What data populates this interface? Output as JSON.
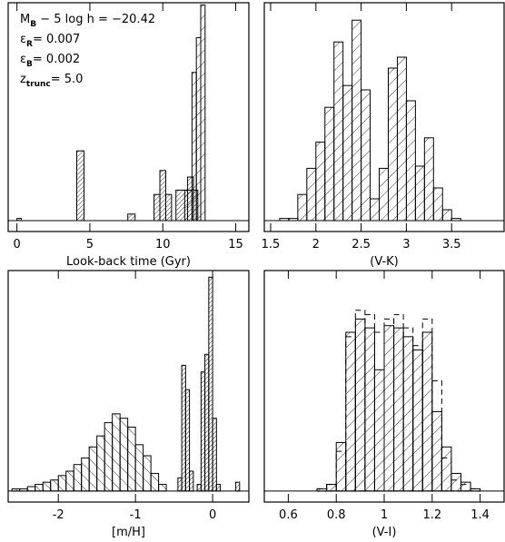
{
  "chart_data": [
    {
      "type": "histogram",
      "xlabel": "Look-back time (Gyr)",
      "xlim": [
        -0.6,
        15.9
      ],
      "ylim": [
        -5,
        100
      ],
      "xticks": [
        0,
        5,
        10,
        15
      ],
      "annotations": [
        {
          "symbol": "M",
          "sub": "B",
          "text": " − 5 log h = −20.42"
        },
        {
          "symbol": "ε",
          "sub": "R",
          "text": "= 0.007"
        },
        {
          "symbol": "ε",
          "sub": "B",
          "text": "= 0.002"
        },
        {
          "symbol": "z",
          "sub": "trunc",
          "text": "= 5.0"
        }
      ],
      "series": [
        {
          "hatch": "///",
          "color": "#000000",
          "bins": [
            0,
            0.3,
            4.1,
            4.6,
            7.6,
            8.1,
            9.4,
            9.8,
            10.2,
            10.6,
            10.9,
            11.7,
            12.1,
            12.4
          ],
          "values": [
            1,
            0,
            32,
            0,
            3,
            0,
            12,
            23,
            12,
            0,
            14,
            20,
            14
          ]
        },
        {
          "hatch": "/",
          "color": "#000000",
          "bins": [
            11.5,
            12.0,
            12.3,
            12.6,
            12.9
          ],
          "values": [
            14,
            68,
            84,
            99
          ]
        }
      ]
    },
    {
      "type": "histogram",
      "xlabel": "(V-K)",
      "xlim": [
        1.43,
        4.08
      ],
      "ylim": [
        -5,
        100
      ],
      "xticks": [
        1.5,
        2,
        2.5,
        3,
        3.5
      ],
      "series": [
        {
          "hatch": "/",
          "color": "#000000",
          "bins": [
            1.6,
            1.7,
            1.8,
            1.9,
            2.0,
            2.1,
            2.2,
            2.3,
            2.4,
            2.5,
            2.6,
            2.7,
            2.8,
            2.9,
            3.0,
            3.1,
            3.2,
            3.3,
            3.4,
            3.5,
            3.6
          ],
          "values": [
            1,
            1,
            12,
            24,
            36,
            52,
            82,
            62,
            92,
            60,
            10,
            24,
            70,
            75,
            55,
            25,
            38,
            15,
            5,
            1
          ]
        }
      ]
    },
    {
      "type": "histogram",
      "xlabel": "[m/H]",
      "xlim": [
        -2.65,
        0.47
      ],
      "ylim": [
        -5,
        100
      ],
      "xticks": [
        -2,
        -1,
        0
      ],
      "series": [
        {
          "hatch": "\\",
          "color": "#000000",
          "bins": [
            -2.6,
            -2.5,
            -2.4,
            -2.3,
            -2.2,
            -2.1,
            -2.0,
            -1.9,
            -1.8,
            -1.7,
            -1.6,
            -1.5,
            -1.4,
            -1.3,
            -1.2,
            -1.1,
            -1.0,
            -0.9,
            -0.8,
            -0.7,
            -0.6
          ],
          "values": [
            1,
            1,
            2,
            3,
            4,
            5,
            7,
            9,
            12,
            15,
            20,
            25,
            31,
            35,
            33,
            29,
            21,
            16,
            8,
            3
          ]
        },
        {
          "hatch": "///",
          "color": "#000000",
          "bins": [
            -0.45,
            -0.4,
            -0.35,
            -0.3,
            -0.25,
            -0.2,
            -0.15,
            -0.1,
            -0.05,
            0,
            0.05,
            0.1,
            0.15,
            0.2,
            0.25,
            0.3,
            0.35,
            0.4
          ],
          "values": [
            6,
            57,
            46,
            9,
            0,
            3,
            54,
            62,
            97,
            33,
            3,
            0,
            0,
            0,
            0,
            4,
            0
          ]
        }
      ]
    },
    {
      "type": "histogram",
      "xlabel": "(V-I)",
      "xlim": [
        0.5,
        1.5
      ],
      "ylim": [
        -5,
        100
      ],
      "xticks": [
        0.6,
        0.8,
        1,
        1.2,
        1.4
      ],
      "series": [
        {
          "hatch": "/",
          "color": "#000000",
          "bins": [
            0.72,
            0.76,
            0.8,
            0.84,
            0.88,
            0.92,
            0.96,
            1.0,
            1.04,
            1.08,
            1.12,
            1.16,
            1.2,
            1.24,
            1.28,
            1.32,
            1.36,
            1.4
          ],
          "values": [
            1,
            3,
            22,
            72,
            78,
            74,
            55,
            75,
            74,
            70,
            64,
            72,
            36,
            20,
            8,
            4,
            1
          ]
        },
        {
          "line_style": "dashed",
          "color": "#000000",
          "bins": [
            0.72,
            0.76,
            0.8,
            0.84,
            0.88,
            0.92,
            0.96,
            1.0,
            1.04,
            1.08,
            1.12,
            1.16,
            1.2,
            1.24,
            1.28,
            1.32,
            1.36,
            1.4
          ],
          "values": [
            1,
            3,
            18,
            70,
            82,
            80,
            72,
            78,
            80,
            74,
            66,
            78,
            50,
            15,
            5,
            3,
            1
          ]
        }
      ]
    }
  ]
}
